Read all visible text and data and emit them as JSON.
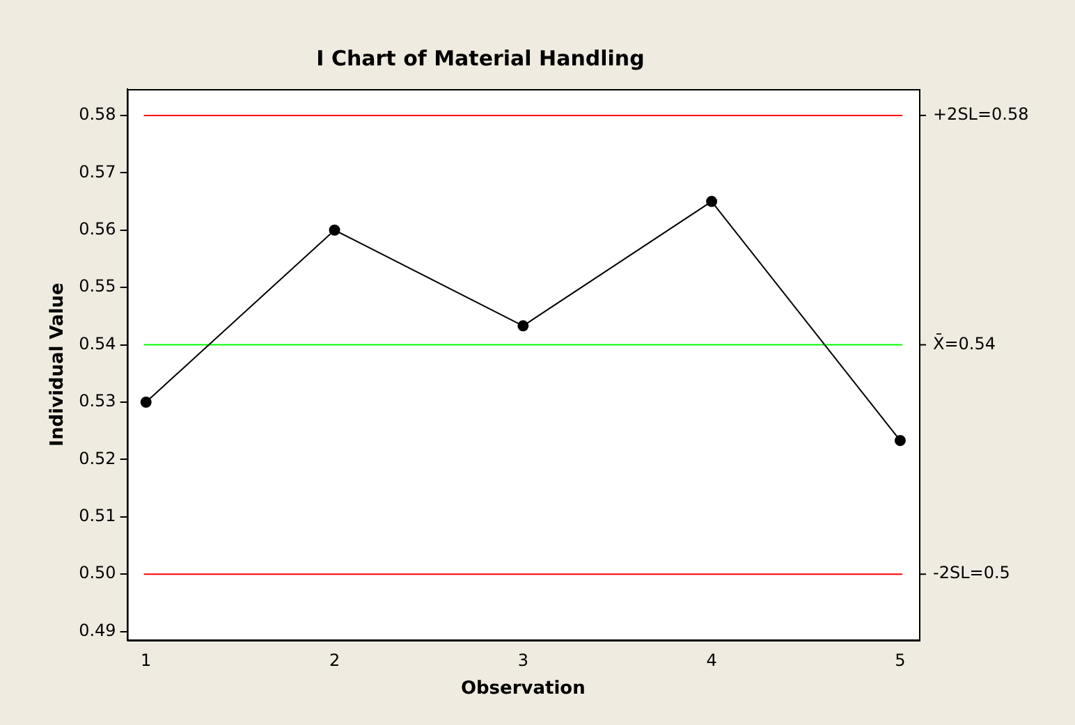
{
  "chart_data": {
    "type": "line",
    "title": "I Chart of Material Handling",
    "xlabel": "Observation",
    "ylabel": "Individual Value",
    "x": [
      1,
      2,
      3,
      4,
      5
    ],
    "series": [
      {
        "color": "#000000",
        "values": [
          0.53,
          0.56,
          0.5433,
          0.565,
          0.5233
        ]
      }
    ],
    "xlim": [
      0.9,
      5.1
    ],
    "xticks": [
      1,
      2,
      3,
      4,
      5
    ],
    "ylim": [
      0.4885,
      0.5846
    ],
    "yticks": [
      0.49,
      {
        "value": 0.5,
        "label": "0.50"
      },
      0.51,
      0.52,
      0.53,
      0.54,
      0.55,
      0.56,
      0.57,
      0.58
    ],
    "ref_lines": [
      {
        "axis": "y",
        "value": 0.58,
        "label": "+2SL=0.58",
        "color": "#ff0000"
      },
      {
        "axis": "y",
        "value": 0.54,
        "label": "X̄=0.54",
        "color": "#00ff00"
      },
      {
        "axis": "y",
        "value": 0.5,
        "label": "-2SL=0.5",
        "color": "#ff0000"
      }
    ],
    "grid": false,
    "legend": false,
    "marker": "circle",
    "line_style": "solid"
  }
}
